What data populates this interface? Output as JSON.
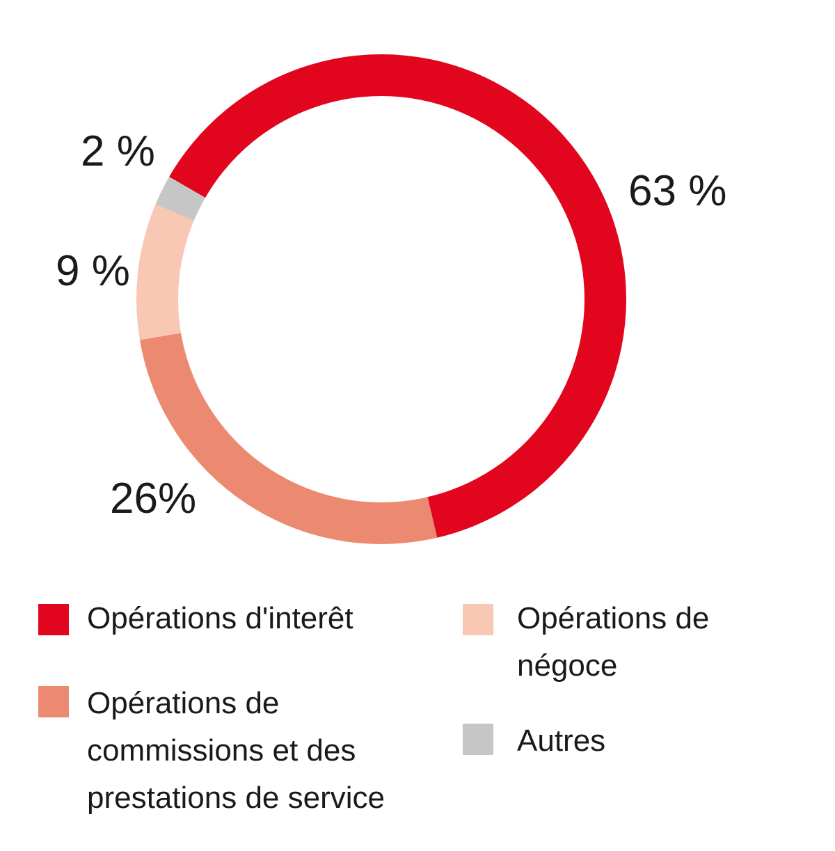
{
  "chart_data": {
    "type": "pie",
    "variant": "donut",
    "title": "",
    "unit": "%",
    "start_angle_deg": 300,
    "direction": "clockwise",
    "hole_ratio": 0.83,
    "legend_position": "bottom",
    "series": [
      {
        "name": "Opérations d'interêt",
        "value": 63,
        "display_label": "63 %",
        "legend_label": "Opérations d'interêt",
        "color": "#e2051e"
      },
      {
        "name": "Opérations de commissions et des prestations de service",
        "value": 26,
        "display_label": "26%",
        "legend_label": "Opérations de\ncommissions et des\nprestations de service",
        "color": "#ec8a71"
      },
      {
        "name": "Opérations de négoce",
        "value": 9,
        "display_label": "9 %",
        "legend_label": "Opérations de\nnégoce",
        "color": "#f9c8b5"
      },
      {
        "name": "Autres",
        "value": 2,
        "display_label": "2 %",
        "legend_label": "Autres",
        "color": "#c6c6c6"
      }
    ],
    "colors": {
      "background": "#ffffff",
      "text": "#1a1a1a"
    }
  }
}
